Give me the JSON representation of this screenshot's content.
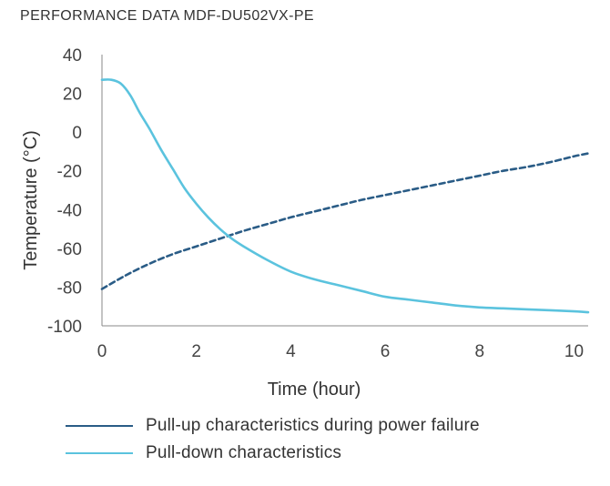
{
  "chart_data": {
    "type": "line",
    "title": "PERFORMANCE DATA MDF-DU502VX-PE",
    "xlabel": "Time (hour)",
    "ylabel": "Temperature (°C)",
    "xlim": [
      0,
      10.3
    ],
    "ylim": [
      -100,
      40
    ],
    "xticks": [
      0,
      2,
      4,
      6,
      8,
      10
    ],
    "yticks": [
      40,
      20,
      0,
      -20,
      -40,
      -60,
      -80,
      -100
    ],
    "grid": false,
    "legend_position": "bottom",
    "series": [
      {
        "name": "Pull-up characteristics during power failure",
        "color": "#2a5c86",
        "line_style": "dashed",
        "x": [
          0,
          0.5,
          1,
          1.5,
          2,
          2.5,
          3,
          3.5,
          4,
          4.5,
          5,
          5.5,
          6,
          6.5,
          7,
          7.5,
          8,
          8.5,
          9,
          9.5,
          10,
          10.3
        ],
        "y": [
          -81,
          -74,
          -68,
          -63,
          -59,
          -55,
          -51,
          -47.5,
          -44,
          -41,
          -38,
          -35,
          -32.5,
          -30,
          -27.5,
          -25,
          -22.5,
          -20,
          -18,
          -15.5,
          -12.5,
          -11
        ]
      },
      {
        "name": "Pull-down characteristics",
        "color": "#5bc3de",
        "line_style": "solid",
        "x": [
          0,
          0.2,
          0.4,
          0.6,
          0.8,
          1.0,
          1.25,
          1.5,
          1.75,
          2.0,
          2.25,
          2.5,
          2.75,
          3.0,
          3.5,
          4.0,
          4.5,
          5.0,
          5.5,
          6.0,
          6.5,
          7.0,
          7.5,
          8.0,
          8.5,
          9.0,
          9.5,
          10.0,
          10.3
        ],
        "y": [
          27,
          27,
          25,
          19,
          10,
          2,
          -9,
          -19,
          -29,
          -37,
          -44,
          -50,
          -55,
          -59,
          -66,
          -72,
          -76,
          -79,
          -82,
          -85,
          -86.5,
          -88,
          -89.5,
          -90.5,
          -91,
          -91.5,
          -92,
          -92.5,
          -93
        ]
      }
    ]
  }
}
